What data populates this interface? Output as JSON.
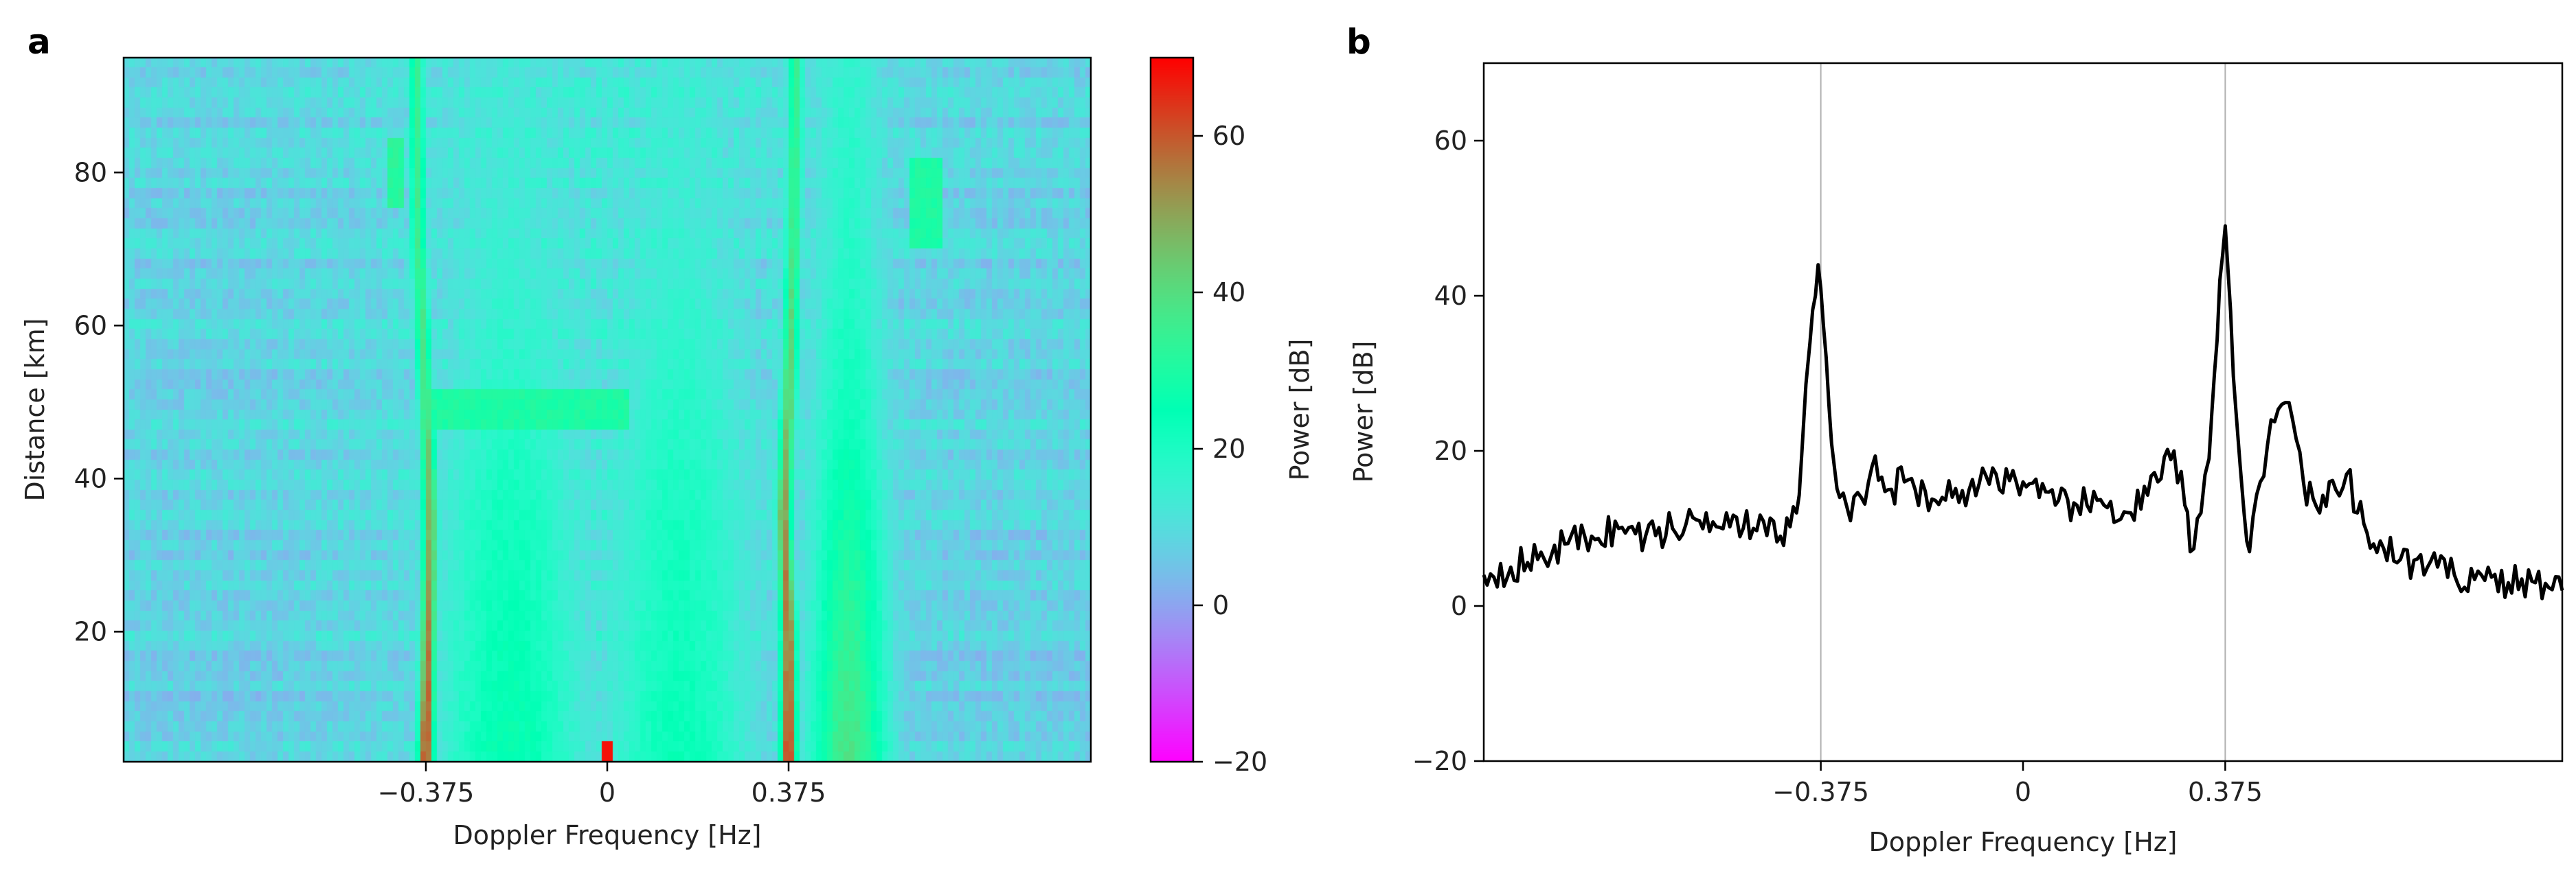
{
  "chart_data": [
    {
      "panel": "a",
      "type": "heatmap",
      "xlabel": "Doppler Frequency [Hz]",
      "ylabel": "Distance [km]",
      "x_ticks": [
        "−0.375",
        "0",
        "0.375"
      ],
      "x_tick_values": [
        -0.375,
        0,
        0.375
      ],
      "xlim": [
        -1.0,
        1.0
      ],
      "y_ticks": [
        "20",
        "40",
        "60",
        "80"
      ],
      "y_tick_values": [
        20,
        40,
        60,
        80
      ],
      "ylim": [
        3,
        95
      ],
      "colormap": "rainbow",
      "colorbar": {
        "label": "Power [dB]",
        "ticks": [
          "−20",
          "0",
          "20",
          "40",
          "60"
        ],
        "tick_values": [
          -20,
          0,
          20,
          40,
          60
        ],
        "range": [
          -20,
          70
        ]
      },
      "background_power_db": 8,
      "features": [
        {
          "kind": "bragg-line",
          "x_center": -0.375,
          "width_hz": 0.035,
          "power_db": [
            63,
            55,
            48,
            40,
            36,
            34
          ],
          "distance_km": [
            5,
            20,
            35,
            50,
            70,
            95
          ],
          "x_drift_hz": [
            0.0,
            0.005,
            0.01,
            0.0,
            -0.015,
            -0.02
          ]
        },
        {
          "kind": "bragg-line",
          "x_center": 0.375,
          "width_hz": 0.035,
          "power_db": [
            65,
            58,
            52,
            44,
            38,
            34
          ],
          "distance_km": [
            5,
            20,
            35,
            50,
            70,
            95
          ],
          "x_drift_hz": [
            0.0,
            0.0,
            -0.01,
            0.0,
            0.01,
            0.015
          ]
        },
        {
          "kind": "band",
          "x_center": 0.5,
          "width_hz": 0.18,
          "power_db": [
            38,
            33,
            28,
            22,
            18,
            16
          ],
          "distance_km": [
            5,
            20,
            35,
            50,
            70,
            95
          ]
        },
        {
          "kind": "band",
          "x_center": -0.2,
          "width_hz": 0.35,
          "power_db": [
            26,
            24,
            22,
            18,
            14,
            12
          ],
          "distance_km": [
            5,
            20,
            35,
            50,
            70,
            95
          ]
        },
        {
          "kind": "band",
          "x_center": 0.15,
          "width_hz": 0.35,
          "power_db": [
            24,
            22,
            21,
            18,
            14,
            12
          ],
          "distance_km": [
            5,
            20,
            35,
            50,
            70,
            95
          ]
        },
        {
          "kind": "patch",
          "x_range": [
            -0.36,
            0.05
          ],
          "y_range": [
            46,
            51
          ],
          "power_db": 30
        },
        {
          "kind": "patch",
          "x_range": [
            -0.45,
            -0.42
          ],
          "y_range": [
            75,
            85
          ],
          "power_db": 32
        },
        {
          "kind": "patch",
          "x_range": [
            0.62,
            0.69
          ],
          "y_range": [
            70,
            82
          ],
          "power_db": 30
        },
        {
          "kind": "point",
          "x": 0.0,
          "y_range": [
            3,
            5
          ],
          "power_db": 68
        }
      ]
    },
    {
      "panel": "b",
      "type": "line",
      "xlabel": "Doppler Frequency [Hz]",
      "ylabel": "Power [dB]",
      "x_ticks": [
        "−0.375",
        "0",
        "0.375"
      ],
      "x_tick_values": [
        -0.375,
        0,
        0.375
      ],
      "xlim": [
        -1.0,
        1.0
      ],
      "y_ticks": [
        "−20",
        "0",
        "20",
        "40",
        "60"
      ],
      "y_tick_values": [
        -20,
        0,
        20,
        40,
        60
      ],
      "ylim": [
        -20,
        70
      ],
      "vlines": [
        -0.375,
        0.375
      ],
      "series": [
        {
          "color": "#000000",
          "x": [
            -1.0,
            -0.95,
            -0.9,
            -0.85,
            -0.8,
            -0.75,
            -0.7,
            -0.65,
            -0.6,
            -0.55,
            -0.5,
            -0.45,
            -0.42,
            -0.41,
            -0.395,
            -0.385,
            -0.38,
            -0.375,
            -0.37,
            -0.36,
            -0.35,
            -0.34,
            -0.32,
            -0.3,
            -0.28,
            -0.25,
            -0.22,
            -0.2,
            -0.15,
            -0.1,
            -0.05,
            0.0,
            0.03,
            0.06,
            0.1,
            0.15,
            0.2,
            0.25,
            0.28,
            0.3,
            0.31,
            0.33,
            0.345,
            0.355,
            0.365,
            0.375,
            0.385,
            0.395,
            0.41,
            0.42,
            0.44,
            0.46,
            0.48,
            0.5,
            0.52,
            0.55,
            0.58,
            0.6,
            0.62,
            0.65,
            0.7,
            0.75,
            0.8,
            0.85,
            0.9,
            0.95,
            1.0
          ],
          "y": [
            4,
            5,
            6,
            8,
            9,
            10,
            9,
            10,
            11,
            12,
            10,
            9,
            12,
            20,
            34,
            40,
            44,
            41,
            36,
            26,
            18,
            14,
            11,
            14,
            18,
            15,
            16,
            15,
            14,
            15,
            17,
            16,
            14,
            13,
            13,
            13,
            12,
            16,
            20,
            13,
            7,
            12,
            19,
            30,
            42,
            49,
            38,
            25,
            12,
            7,
            16,
            24,
            26,
            24,
            16,
            12,
            15,
            17,
            12,
            8,
            6,
            5,
            4,
            4,
            3,
            3,
            2
          ]
        }
      ]
    }
  ]
}
